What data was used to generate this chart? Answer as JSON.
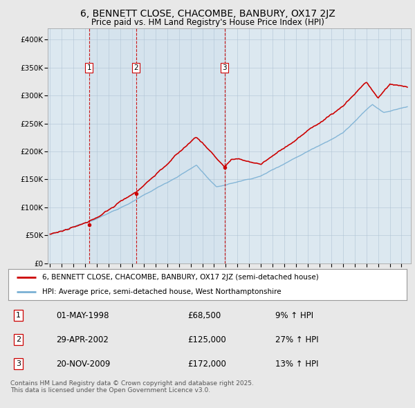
{
  "title": "6, BENNETT CLOSE, CHACOMBE, BANBURY, OX17 2JZ",
  "subtitle": "Price paid vs. HM Land Registry's House Price Index (HPI)",
  "ylim": [
    0,
    420000
  ],
  "yticks": [
    0,
    50000,
    100000,
    150000,
    200000,
    250000,
    300000,
    350000,
    400000
  ],
  "ytick_labels": [
    "£0",
    "£50K",
    "£100K",
    "£150K",
    "£200K",
    "£250K",
    "£300K",
    "£350K",
    "£400K"
  ],
  "sale_dates_num": [
    1998.33,
    2002.33,
    2009.89
  ],
  "sale_prices": [
    68500,
    125000,
    172000
  ],
  "sale_labels": [
    "1",
    "2",
    "3"
  ],
  "sale_info": [
    {
      "num": "1",
      "date": "01-MAY-1998",
      "price": "£68,500",
      "change": "9% ↑ HPI"
    },
    {
      "num": "2",
      "date": "29-APR-2002",
      "price": "£125,000",
      "change": "27% ↑ HPI"
    },
    {
      "num": "3",
      "date": "20-NOV-2009",
      "price": "£172,000",
      "change": "13% ↑ HPI"
    }
  ],
  "legend_line1": "6, BENNETT CLOSE, CHACOMBE, BANBURY, OX17 2JZ (semi-detached house)",
  "legend_line2": "HPI: Average price, semi-detached house, West Northamptonshire",
  "footer": "Contains HM Land Registry data © Crown copyright and database right 2025.\nThis data is licensed under the Open Government Licence v3.0.",
  "line_color": "#cc0000",
  "hpi_color": "#7ab0d4",
  "background_color": "#e8e8e8",
  "plot_bg_color": "#dce8f0",
  "grid_color": "#b0c4d4",
  "vline_color": "#cc0000",
  "shade_color": "#c8dce8"
}
